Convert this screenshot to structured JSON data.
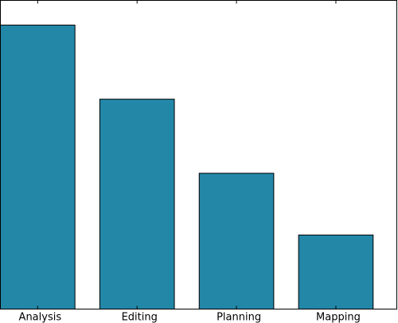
{
  "chart_data": {
    "type": "bar",
    "categories": [
      "Analysis",
      "Editing",
      "Planning",
      "Mapping"
    ],
    "values": [
      92,
      68,
      44,
      24
    ],
    "color": "#2387a8",
    "ylim": [
      0,
      100
    ]
  }
}
